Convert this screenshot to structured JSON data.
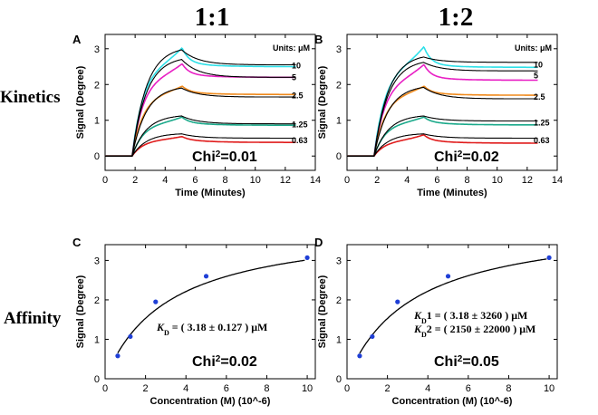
{
  "column_titles": {
    "left": "1:1",
    "right": "1:2"
  },
  "row_titles": {
    "top": "Kinetics",
    "bottom": "Affinity"
  },
  "colors": {
    "fit": "#000000",
    "c10": "#2de0e8",
    "c5": "#e81fc4",
    "c2_5": "#f08a1c",
    "c1_25": "#1aa98a",
    "c0_63": "#e01c1c",
    "points": "#1f3fd6"
  },
  "chart_data": [
    {
      "panel": "A",
      "type": "line",
      "units_label": "Units: μM",
      "xlabel": "Time (Minutes)",
      "ylabel": "Signal (Degree)",
      "xlim": [
        0,
        14
      ],
      "ylim": [
        -0.4,
        3.4
      ],
      "xticks": [
        "0",
        "2",
        "4",
        "6",
        "8",
        "10",
        "12",
        "14"
      ],
      "yticks": [
        "0",
        "1",
        "2",
        "3"
      ],
      "chi_label": "Chi",
      "chi_sup": "2",
      "chi_value": "=0.01",
      "series": [
        {
          "name": "10",
          "label": "10",
          "color_key": "c10",
          "plateau": 2.62,
          "peak": 3.05,
          "fitpeak": 2.97,
          "fitend": 2.55,
          "decay": 0.12
        },
        {
          "name": "5",
          "label": "5",
          "color_key": "c5",
          "plateau": 2.3,
          "peak": 2.6,
          "fitpeak": 2.7,
          "fitend": 2.2,
          "decay": 0.1
        },
        {
          "name": "2.5",
          "label": "2.5",
          "color_key": "c2_5",
          "plateau": 1.8,
          "peak": 1.97,
          "fitpeak": 1.9,
          "fitend": 1.65,
          "decay": 0.08
        },
        {
          "name": "1.25",
          "label": "1.25",
          "color_key": "c1_25",
          "plateau": 0.95,
          "peak": 1.1,
          "fitpeak": 1.12,
          "fitend": 0.9,
          "decay": 0.09
        },
        {
          "name": "0.63",
          "label": "0.63",
          "color_key": "c0_63",
          "plateau": 0.47,
          "peak": 0.55,
          "fitpeak": 0.62,
          "fitend": 0.5,
          "decay": 0.09
        }
      ]
    },
    {
      "panel": "B",
      "type": "line",
      "units_label": "Units: μM",
      "xlabel": "Time (Minutes)",
      "ylabel": "Signal (Degree)",
      "xlim": [
        0,
        14
      ],
      "ylim": [
        -0.4,
        3.4
      ],
      "xticks": [
        "0",
        "2",
        "4",
        "6",
        "8",
        "10",
        "12",
        "14"
      ],
      "yticks": [
        "0",
        "1",
        "2",
        "3"
      ],
      "chi_label": "Chi",
      "chi_sup": "2",
      "chi_value": "=0.02",
      "series": [
        {
          "name": "10",
          "label": "10",
          "color_key": "c10",
          "plateau": 2.58,
          "peak": 3.08,
          "fitpeak": 2.77,
          "fitend": 2.62,
          "decay": 0.1
        },
        {
          "name": "5",
          "label": "5",
          "color_key": "c5",
          "plateau": 2.22,
          "peak": 2.58,
          "fitpeak": 2.62,
          "fitend": 2.38,
          "decay": 0.1
        },
        {
          "name": "2.5",
          "label": "2.5",
          "color_key": "c2_5",
          "plateau": 1.78,
          "peak": 1.97,
          "fitpeak": 1.92,
          "fitend": 1.6,
          "decay": 0.08
        },
        {
          "name": "1.25",
          "label": "1.25",
          "color_key": "c1_25",
          "plateau": 0.96,
          "peak": 1.1,
          "fitpeak": 1.12,
          "fitend": 0.98,
          "decay": 0.09
        },
        {
          "name": "0.63",
          "label": "0.63",
          "color_key": "c0_63",
          "plateau": 0.45,
          "peak": 0.6,
          "fitpeak": 0.62,
          "fitend": 0.5,
          "decay": 0.09
        }
      ]
    },
    {
      "panel": "C",
      "type": "scatter",
      "xlabel": "Concentration (M) (10^-6)",
      "ylabel": "Signal (Degree)",
      "xlim": [
        0,
        10.4
      ],
      "ylim": [
        0,
        3.4
      ],
      "xticks": [
        "0",
        "2",
        "4",
        "6",
        "8",
        "10"
      ],
      "yticks": [
        "0",
        "1",
        "2",
        "3"
      ],
      "points": {
        "x": [
          0.625,
          1.25,
          2.5,
          5,
          10
        ],
        "y": [
          0.58,
          1.07,
          1.95,
          2.6,
          3.07
        ]
      },
      "fit": {
        "bmax": 3.97,
        "kd": 3.18
      },
      "kd_lines": [
        {
          "k": "K",
          "sub": "D",
          "text": " = ( 3.18 ± 0.127 )  μM"
        }
      ],
      "chi_label": "Chi",
      "chi_sup": "2",
      "chi_value": "=0.02"
    },
    {
      "panel": "D",
      "type": "scatter",
      "xlabel": "Concentration (M) (10^-6)",
      "ylabel": "Signal (Degree)",
      "xlim": [
        0,
        10.4
      ],
      "ylim": [
        0,
        3.4
      ],
      "xticks": [
        "0",
        "2",
        "4",
        "6",
        "8",
        "10"
      ],
      "yticks": [
        "0",
        "1",
        "2",
        "3"
      ],
      "points": {
        "x": [
          0.625,
          1.25,
          2.5,
          5,
          10
        ],
        "y": [
          0.58,
          1.07,
          1.95,
          2.6,
          3.07
        ]
      },
      "fit": {
        "bmax": 4.05,
        "kd": 3.3
      },
      "kd_lines": [
        {
          "k": "K",
          "sub": "D",
          "text": "1 = ( 3.18 ± 3260 )  μM"
        },
        {
          "k": "K",
          "sub": "D",
          "text": "2 = ( 2150 ± 22000 )  μM"
        }
      ],
      "chi_label": "Chi",
      "chi_sup": "2",
      "chi_value": "=0.05"
    }
  ]
}
